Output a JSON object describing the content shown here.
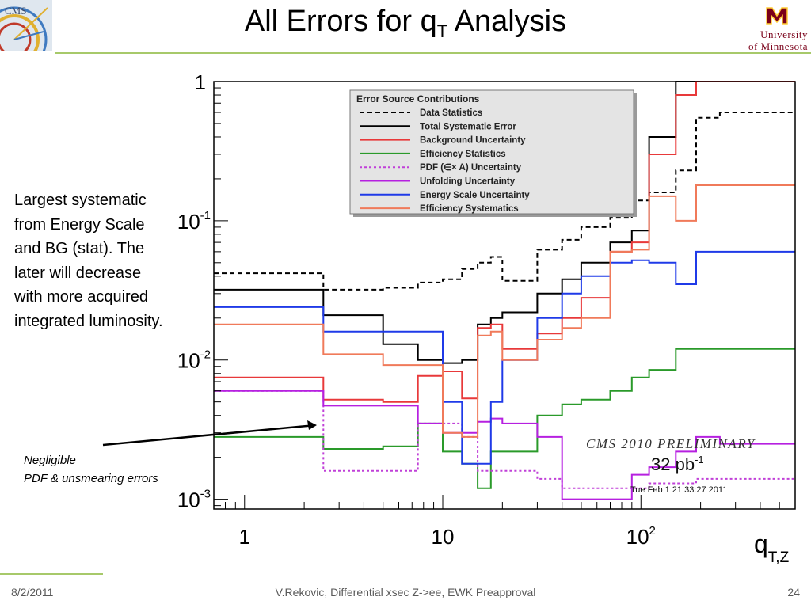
{
  "slide": {
    "title_main": "All Errors for q",
    "title_sub": "T",
    "title_rest": " Analysis",
    "note_lines": [
      "Largest systematic",
      "from Energy Scale",
      "and BG (stat).  The",
      "later will decrease",
      "with more acquired",
      "integrated luminosity."
    ],
    "negligible_lines": [
      "Negligible",
      "PDF & unsmearing errors"
    ],
    "footer_date": "8/2/2011",
    "footer_center": "V.Rekovic, Differential xsec Z->ee, EWK Preapproval",
    "footer_page": "24",
    "logo_cms_text": "CMS",
    "umn_line1": "University",
    "umn_line2": "of Minnesota",
    "colors": {
      "accent_rule": "#a7c96a",
      "umn_maroon": "#7a0019",
      "arrow": "#000000"
    }
  },
  "chart_data": {
    "type": "line",
    "step": true,
    "x_scale": "log",
    "y_scale": "log",
    "xlim": [
      0.7,
      600
    ],
    "ylim": [
      0.00085,
      1.0
    ],
    "xlabel_main": "q",
    "xlabel_sub": "T,Z",
    "ylabel": "",
    "x_tick_labels": [
      {
        "value": 1,
        "label": "1"
      },
      {
        "value": 10,
        "label": "10"
      },
      {
        "value": 100,
        "label": "10",
        "sup": "2"
      }
    ],
    "y_tick_labels": [
      {
        "value": 1,
        "label": "1"
      },
      {
        "value": 0.1,
        "label": "10",
        "sup": "-1"
      },
      {
        "value": 0.01,
        "label": "10",
        "sup": "-2"
      },
      {
        "value": 0.001,
        "label": "10",
        "sup": "-3"
      }
    ],
    "grid": false,
    "legend": {
      "title": "Error Source Contributions",
      "placement": "top-center"
    },
    "annotations": [
      "CMS 2010 PRELIMINARY",
      "32 pb",
      "-1",
      "Tue Feb  1 21:33:27 2011"
    ],
    "bin_edges": [
      0.7,
      2.5,
      5,
      7.5,
      10,
      12.5,
      15,
      17.5,
      20,
      30,
      40,
      50,
      70,
      90,
      110,
      150,
      190,
      250,
      600
    ],
    "series": [
      {
        "name": "Data Statistics",
        "color": "#000000",
        "dash": "6,4",
        "width": 2,
        "values": [
          0.042,
          0.032,
          0.033,
          0.036,
          0.038,
          0.045,
          0.05,
          0.055,
          0.037,
          0.062,
          0.073,
          0.09,
          0.105,
          0.14,
          0.16,
          0.23,
          0.55,
          0.6
        ]
      },
      {
        "name": "Total Systematic Error",
        "color": "#000000",
        "dash": "",
        "width": 2,
        "values": [
          0.032,
          0.021,
          0.013,
          0.01,
          0.0095,
          0.01,
          0.018,
          0.02,
          0.022,
          0.03,
          0.038,
          0.05,
          0.07,
          0.085,
          0.4,
          1.0,
          1.0,
          1.0
        ]
      },
      {
        "name": "Background Uncertainty",
        "color": "#e8393a",
        "dash": "",
        "width": 2,
        "values": [
          0.0075,
          0.0052,
          0.005,
          0.0077,
          0.0083,
          0.0053,
          0.017,
          0.018,
          0.012,
          0.0155,
          0.02,
          0.028,
          0.06,
          0.07,
          0.3,
          0.8,
          1.0,
          1.0
        ]
      },
      {
        "name": "Efficiency Statistics",
        "color": "#2a9a2a",
        "dash": "",
        "width": 2,
        "values": [
          0.0028,
          0.0023,
          0.0024,
          0.0035,
          0.0022,
          0.0018,
          0.0012,
          0.0022,
          0.0022,
          0.004,
          0.0048,
          0.0052,
          0.006,
          0.0075,
          0.0085,
          0.012,
          0.012,
          0.012
        ]
      },
      {
        "name": "PDF (∈× A) Uncertainty",
        "color": "#c040d8",
        "dash": "3,3",
        "width": 2,
        "values": [
          0.006,
          0.0016,
          0.0016,
          0.0035,
          0.0035,
          0.0028,
          0.0016,
          0.0016,
          0.0016,
          0.0014,
          0.0012,
          0.0012,
          0.0012,
          0.0012,
          0.0013,
          0.0013,
          0.0014,
          0.0014
        ]
      },
      {
        "name": "Unfolding Uncertainty",
        "color": "#b620e0",
        "dash": "",
        "width": 2,
        "values": [
          0.006,
          0.0047,
          0.0047,
          0.0035,
          0.003,
          0.003,
          0.0036,
          0.0038,
          0.0035,
          0.0028,
          0.001,
          0.001,
          0.001,
          0.0015,
          0.0017,
          0.0022,
          0.0028,
          0.0025
        ]
      },
      {
        "name": "Energy Scale Uncertainty",
        "color": "#1f3ae8",
        "dash": "",
        "width": 2,
        "values": [
          0.024,
          0.016,
          0.016,
          0.016,
          0.005,
          0.0018,
          0.0018,
          0.005,
          0.01,
          0.02,
          0.03,
          0.04,
          0.05,
          0.052,
          0.05,
          0.035,
          0.06,
          0.06
        ]
      },
      {
        "name": "Efficiency Systematics",
        "color": "#f07a5a",
        "dash": "",
        "width": 2,
        "values": [
          0.018,
          0.011,
          0.0092,
          0.0092,
          0.003,
          0.0028,
          0.015,
          0.016,
          0.01,
          0.014,
          0.017,
          0.02,
          0.06,
          0.062,
          0.15,
          0.1,
          0.18,
          0.18
        ]
      }
    ]
  }
}
